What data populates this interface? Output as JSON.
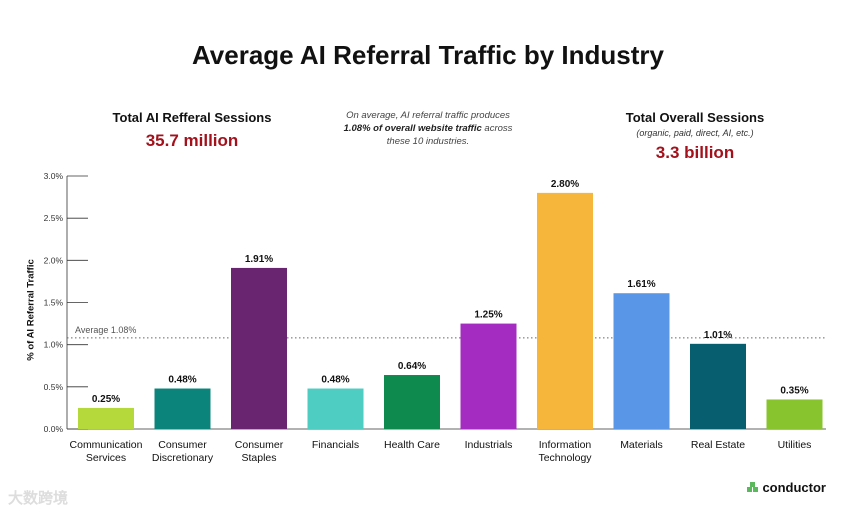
{
  "header": {
    "title": "Average AI Referral Traffic by Industry"
  },
  "stats": {
    "left_label": "Total AI Refferal Sessions",
    "left_value": "35.7 million",
    "note_part1": "On average, AI referral traffic produces ",
    "note_bold": "1.08% of overall website traffic",
    "note_part2": " across these 10 industries.",
    "right_label": "Total Overall Sessions",
    "right_sub": "(organic, paid, direct, AI, etc.)",
    "right_value": "3.3 billion"
  },
  "chart_data": {
    "type": "bar",
    "ylabel": "% of AI Referral Traffic",
    "ylim": [
      0,
      3.0
    ],
    "yticks": [
      "0.0%",
      "0.5%",
      "1.0%",
      "1.5%",
      "2.0%",
      "2.5%",
      "3.0%"
    ],
    "average": {
      "value": 1.08,
      "label": "Average 1.08%"
    },
    "categories": [
      [
        "Communication",
        "Services"
      ],
      [
        "Consumer",
        "Discretionary"
      ],
      [
        "Consumer",
        "Staples"
      ],
      [
        "Financials"
      ],
      [
        "Health Care"
      ],
      [
        "Industrials"
      ],
      [
        "Information",
        "Technology"
      ],
      [
        "Materials"
      ],
      [
        "Real Estate"
      ],
      [
        "Utilities"
      ]
    ],
    "values": [
      0.25,
      0.48,
      1.91,
      0.48,
      0.64,
      1.25,
      2.8,
      1.61,
      1.01,
      0.35
    ],
    "value_labels": [
      "0.25%",
      "0.48%",
      "1.91%",
      "0.48%",
      "0.64%",
      "1.25%",
      "2.80%",
      "1.61%",
      "1.01%",
      "0.35%"
    ],
    "colors": [
      "#b5d93a",
      "#0b857c",
      "#6a2570",
      "#4ecec3",
      "#0f8a4e",
      "#a42cc0",
      "#f6b63b",
      "#5a96e8",
      "#075e6e",
      "#87c42e"
    ],
    "grid": false
  },
  "branding": {
    "logo": "conductor",
    "logo_icon": "conductor-logo-icon",
    "watermark": "大数跨境"
  }
}
